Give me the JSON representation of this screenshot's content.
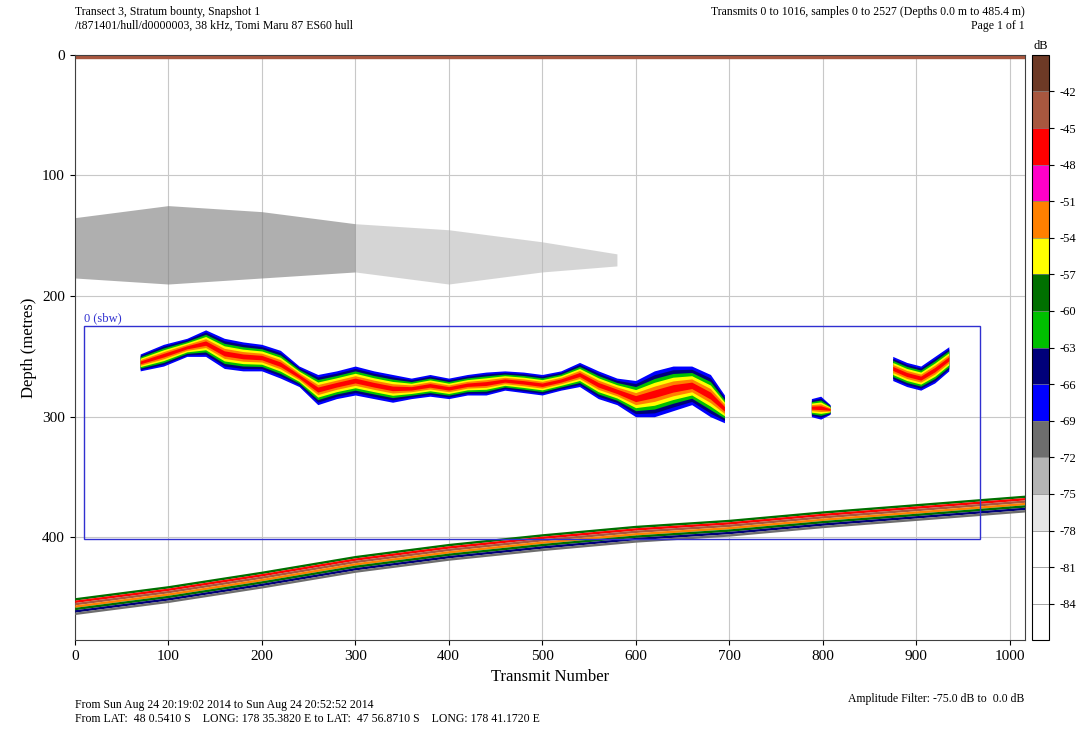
{
  "chart_data": {
    "type": "echogram",
    "header_left": [
      "Transect 3, Stratum bounty, Snapshot 1",
      "/t871401/hull/d0000003, 38 kHz, Tomi Maru 87 ES60 hull"
    ],
    "header_right": [
      "Transmits 0 to 1016, samples 0 to 2527 (Depths 0.0 m to 485.4 m)",
      "Page 1 of 1"
    ],
    "footer_left": [
      "From Sun Aug 24 20:19:02 2014 to Sun Aug 24 20:52:52 2014",
      "From LAT:  48 0.5410 S    LONG: 178 35.3820 E to LAT:  47 56.8710 S    LONG: 178 41.1720 E"
    ],
    "footer_right": [
      "Amplitude Filter: -75.0 dB to  0.0 dB"
    ],
    "x_label": "Transmit Number",
    "y_label": "Depth (metres)",
    "xlim": [
      0,
      1016
    ],
    "ylim": [
      485.4,
      0
    ],
    "xticks": [
      0,
      100,
      200,
      300,
      400,
      500,
      600,
      700,
      800,
      900,
      1000
    ],
    "yticks": [
      0,
      100,
      200,
      300,
      400
    ],
    "grid": true,
    "colorbar": {
      "label": "dB",
      "bounds": [
        -87,
        -84,
        -81,
        -78,
        -75,
        -72,
        -69,
        -66,
        -63,
        -60,
        -57,
        -54,
        -51,
        -48,
        -45,
        -42,
        -39
      ],
      "colors": [
        "#ffffff",
        "#ffffff",
        "#ffffff",
        "#e6e6e6",
        "#b4b4b4",
        "#6e6e6e",
        "#0000ff",
        "#00007a",
        "#00c000",
        "#007000",
        "#ffff00",
        "#ff8000",
        "#ff00c8",
        "#ff0000",
        "#a8573f",
        "#6e3a26"
      ],
      "ticks": [
        -84,
        -81,
        -78,
        -75,
        -72,
        -69,
        -66,
        -63,
        -60,
        -57,
        -54,
        -51,
        -48,
        -45,
        -42
      ]
    },
    "region": {
      "label": "0 (sbw)",
      "x": [
        10,
        968
      ],
      "depth": [
        225,
        401
      ],
      "color": "#3030d0"
    },
    "surface": {
      "top": 0,
      "bottom": 3,
      "sv": -45
    },
    "scattering_layer": {
      "x": [
        0,
        100,
        200,
        300,
        400,
        500,
        580
      ],
      "top": [
        135,
        125,
        130,
        140,
        145,
        155,
        165
      ],
      "bottom": [
        185,
        190,
        185,
        180,
        190,
        180,
        175
      ],
      "sv": [
        -71,
        -70,
        -71,
        -73,
        -73,
        -74,
        -76
      ]
    },
    "school_sv": [
      -67,
      -64,
      -61,
      -56,
      -52,
      -47
    ],
    "schools": [
      {
        "x": [
          70,
          95,
          120,
          140,
          160,
          180,
          200,
          220,
          240,
          260,
          280,
          300,
          320,
          340,
          360,
          380,
          400,
          420,
          440,
          460,
          480,
          500,
          520,
          540,
          560,
          580,
          600,
          620,
          640,
          660,
          680,
          695
        ],
        "top": [
          248,
          240,
          235,
          228,
          235,
          238,
          240,
          245,
          258,
          265,
          262,
          258,
          262,
          265,
          268,
          265,
          268,
          265,
          263,
          262,
          263,
          265,
          262,
          255,
          262,
          268,
          270,
          262,
          258,
          258,
          265,
          282
        ],
        "bottom": [
          262,
          258,
          250,
          250,
          260,
          262,
          262,
          268,
          275,
          290,
          285,
          282,
          285,
          288,
          285,
          283,
          285,
          282,
          282,
          278,
          280,
          282,
          278,
          275,
          285,
          290,
          300,
          300,
          295,
          290,
          300,
          305
        ]
      },
      {
        "x": [
          788,
          798,
          808
        ],
        "top": [
          285,
          283,
          290
        ],
        "bottom": [
          300,
          302,
          298
        ]
      },
      {
        "x": [
          875,
          890,
          905,
          920,
          935
        ],
        "top": [
          250,
          255,
          258,
          250,
          242
        ],
        "bottom": [
          270,
          275,
          278,
          272,
          262
        ]
      }
    ],
    "seabed": {
      "x": [
        0,
        100,
        200,
        300,
        400,
        500,
        600,
        700,
        800,
        900,
        1016
      ],
      "depth": [
        450,
        440,
        428,
        415,
        405,
        397,
        390,
        385,
        378,
        372,
        365
      ],
      "profile_sv": [
        -60,
        -47,
        -45,
        -52,
        -60,
        -66,
        -72
      ],
      "profile_step": 2
    }
  }
}
